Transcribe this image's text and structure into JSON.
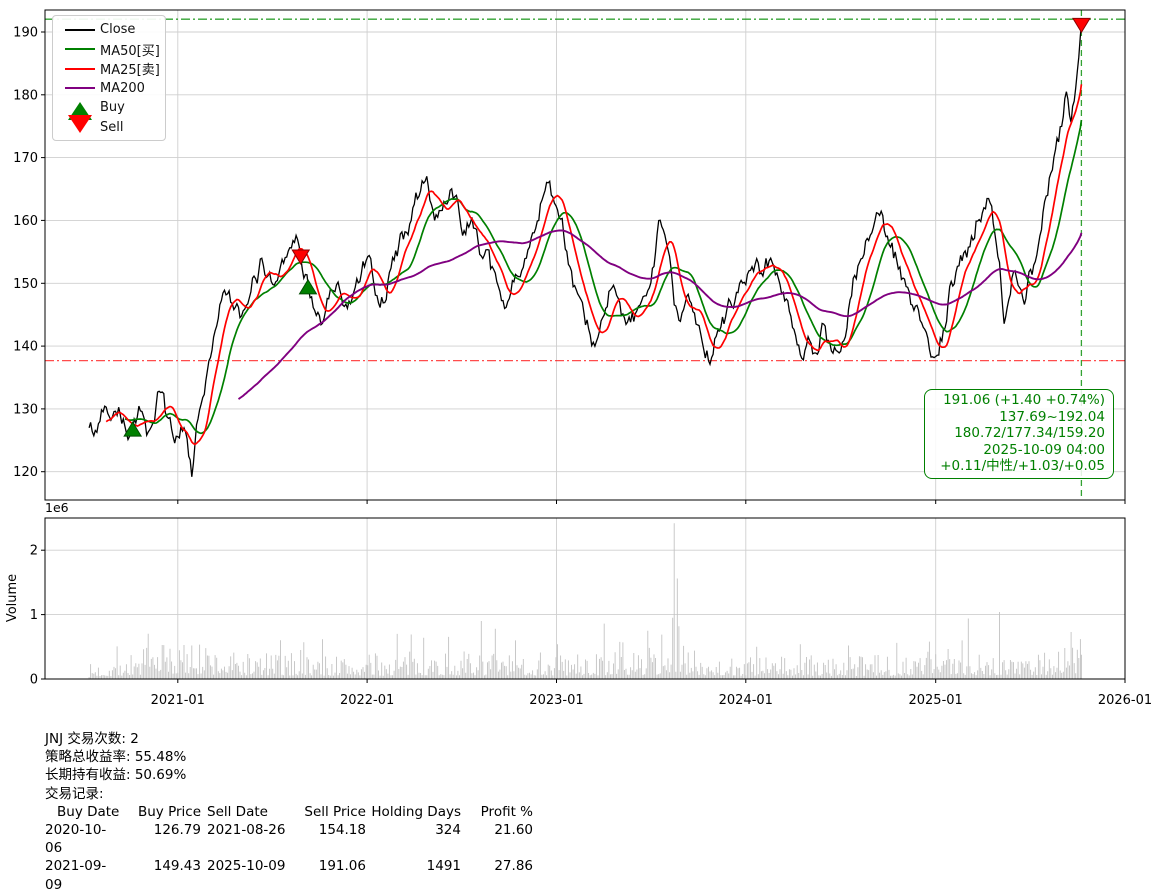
{
  "stats": {
    "line1": "JNJ 交易次数: 2",
    "line2": "策略总收益率: 55.48%",
    "line3": "长期持有收益: 50.69%",
    "line4": "交易记录:",
    "table": {
      "headers": [
        "Buy Date",
        "Buy Price",
        "Sell Date",
        "Sell Price",
        "Holding Days",
        "Profit %"
      ],
      "rows": [
        [
          "2020-10-06",
          "126.79",
          "2021-08-26",
          "154.18",
          "324",
          "21.60"
        ],
        [
          "2021-09-09",
          "149.43",
          "2025-10-09",
          "191.06",
          "1491",
          "27.86"
        ]
      ]
    }
  },
  "legend": {
    "items": [
      {
        "label": "Close",
        "color": "#000000",
        "type": "line"
      },
      {
        "label": "MA50[买]",
        "color": "#008000",
        "type": "line"
      },
      {
        "label": "MA25[卖]",
        "color": "#ff0000",
        "type": "line"
      },
      {
        "label": "MA200",
        "color": "#800080",
        "type": "line"
      },
      {
        "label": "Buy",
        "color": "#008000",
        "type": "triangle-up"
      },
      {
        "label": "Sell",
        "color": "#ff0000",
        "type": "triangle-down"
      }
    ]
  },
  "annotation": {
    "color": "#008000",
    "lines": [
      "191.06 (+1.40 +0.74%)",
      "137.69~192.04",
      "180.72/177.34/159.20",
      "2025-10-09 04:00",
      "+0.11/中性/+1.03/+0.05"
    ]
  },
  "chart_data": {
    "type": "line",
    "title": "",
    "symbol": "JNJ",
    "xlim": [
      "2020-04-20",
      "2026-01-01"
    ],
    "data_range": [
      "2020-07-14",
      "2025-10-09"
    ],
    "x_ticks": [
      "2021-01",
      "2022-01",
      "2023-01",
      "2024-01",
      "2025-01",
      "2026-01"
    ],
    "price_ticks": [
      120,
      130,
      140,
      150,
      160,
      170,
      180,
      190
    ],
    "price_ylim": [
      115.5,
      193.5
    ],
    "volume_ticks": [
      0,
      1,
      2
    ],
    "volume_ylim": [
      0,
      2500000
    ],
    "volume_offset_label": "1e6",
    "volume_ylabel": "Volume",
    "grid_color": "#cfcfcf",
    "close": {
      "name": "Close",
      "color": "#000000",
      "anchors": [
        [
          "2020-07-14",
          127.0
        ],
        [
          "2020-07-28",
          126.0
        ],
        [
          "2020-08-11",
          129.8
        ],
        [
          "2020-08-25",
          128.2
        ],
        [
          "2020-09-08",
          130.5
        ],
        [
          "2020-09-22",
          127.0
        ],
        [
          "2020-10-06",
          126.79
        ],
        [
          "2020-10-20",
          130.0
        ],
        [
          "2020-11-03",
          125.5
        ],
        [
          "2020-11-17",
          128.0
        ],
        [
          "2020-11-30",
          133.0
        ],
        [
          "2020-12-14",
          128.5
        ],
        [
          "2020-12-28",
          125.5
        ],
        [
          "2021-01-12",
          127.5
        ],
        [
          "2021-01-21",
          123.0
        ],
        [
          "2021-01-28",
          119.2
        ],
        [
          "2021-02-08",
          128.0
        ],
        [
          "2021-02-23",
          134.0
        ],
        [
          "2021-03-10",
          141.0
        ],
        [
          "2021-03-24",
          147.0
        ],
        [
          "2021-04-09",
          149.0
        ],
        [
          "2021-04-23",
          146.0
        ],
        [
          "2021-05-14",
          146.5
        ],
        [
          "2021-06-01",
          151.0
        ],
        [
          "2021-06-14",
          153.0
        ],
        [
          "2021-07-05",
          149.5
        ],
        [
          "2021-07-23",
          153.0
        ],
        [
          "2021-08-12",
          157.0
        ],
        [
          "2021-08-26",
          154.18
        ],
        [
          "2021-09-09",
          149.43
        ],
        [
          "2021-09-24",
          145.0
        ],
        [
          "2021-10-08",
          143.5
        ],
        [
          "2021-10-22",
          149.0
        ],
        [
          "2021-11-05",
          150.5
        ],
        [
          "2021-11-19",
          146.0
        ],
        [
          "2021-12-03",
          147.5
        ],
        [
          "2021-12-17",
          150.0
        ],
        [
          "2022-01-03",
          154.5
        ],
        [
          "2022-01-24",
          146.5
        ],
        [
          "2022-02-14",
          152.0
        ],
        [
          "2022-03-08",
          158.0
        ],
        [
          "2022-04-12",
          164.0
        ],
        [
          "2022-04-25",
          167.5
        ],
        [
          "2022-05-11",
          160.0
        ],
        [
          "2022-06-22",
          164.0
        ],
        [
          "2022-07-08",
          158.0
        ],
        [
          "2022-07-22",
          160.5
        ],
        [
          "2022-08-10",
          154.0
        ],
        [
          "2022-08-26",
          152.5
        ],
        [
          "2022-09-15",
          148.5
        ],
        [
          "2022-09-28",
          146.8
        ],
        [
          "2022-10-12",
          150.5
        ],
        [
          "2022-10-26",
          152.0
        ],
        [
          "2022-11-09",
          155.5
        ],
        [
          "2022-11-23",
          159.0
        ],
        [
          "2022-12-07",
          164.0
        ],
        [
          "2022-12-16",
          166.0
        ],
        [
          "2022-12-29",
          162.5
        ],
        [
          "2023-01-10",
          160.0
        ],
        [
          "2023-01-25",
          152.5
        ],
        [
          "2023-02-08",
          149.0
        ],
        [
          "2023-02-22",
          145.5
        ],
        [
          "2023-03-08",
          141.5
        ],
        [
          "2023-03-17",
          139.8
        ],
        [
          "2023-03-31",
          144.5
        ],
        [
          "2023-04-14",
          149.0
        ],
        [
          "2023-04-28",
          148.0
        ],
        [
          "2023-05-12",
          144.5
        ],
        [
          "2023-05-24",
          143.8
        ],
        [
          "2023-06-09",
          146.5
        ],
        [
          "2023-06-23",
          148.0
        ],
        [
          "2023-07-07",
          152.0
        ],
        [
          "2023-07-19",
          160.3
        ],
        [
          "2023-07-26",
          158.5
        ],
        [
          "2023-08-09",
          153.0
        ],
        [
          "2023-08-18",
          146.5
        ],
        [
          "2023-08-30",
          145.0
        ],
        [
          "2023-09-13",
          148.5
        ],
        [
          "2023-09-27",
          143.5
        ],
        [
          "2023-10-11",
          139.5
        ],
        [
          "2023-10-26",
          137.8
        ],
        [
          "2023-11-08",
          142.5
        ],
        [
          "2023-11-22",
          144.5
        ],
        [
          "2023-12-06",
          146.5
        ],
        [
          "2023-12-20",
          150.0
        ],
        [
          "2024-01-05",
          151.5
        ],
        [
          "2024-01-19",
          153.0
        ],
        [
          "2024-02-02",
          151.0
        ],
        [
          "2024-02-20",
          153.5
        ],
        [
          "2024-03-05",
          150.5
        ],
        [
          "2024-03-19",
          147.5
        ],
        [
          "2024-04-02",
          143.0
        ],
        [
          "2024-04-16",
          138.3
        ],
        [
          "2024-04-30",
          141.5
        ],
        [
          "2024-05-14",
          138.5
        ],
        [
          "2024-05-28",
          144.0
        ],
        [
          "2024-06-11",
          140.5
        ],
        [
          "2024-06-25",
          139.0
        ],
        [
          "2024-07-09",
          141.0
        ],
        [
          "2024-07-23",
          148.0
        ],
        [
          "2024-08-06",
          153.0
        ],
        [
          "2024-08-20",
          157.0
        ],
        [
          "2024-09-06",
          160.0
        ],
        [
          "2024-09-17",
          161.8
        ],
        [
          "2024-09-30",
          157.5
        ],
        [
          "2024-10-15",
          155.0
        ],
        [
          "2024-10-29",
          151.0
        ],
        [
          "2024-11-12",
          148.5
        ],
        [
          "2024-11-26",
          146.5
        ],
        [
          "2024-12-10",
          143.0
        ],
        [
          "2024-12-20",
          139.5
        ],
        [
          "2025-01-03",
          138.2
        ],
        [
          "2025-01-17",
          143.0
        ],
        [
          "2025-01-28",
          149.5
        ],
        [
          "2025-02-11",
          152.5
        ],
        [
          "2025-02-25",
          155.0
        ],
        [
          "2025-03-11",
          157.5
        ],
        [
          "2025-03-25",
          160.0
        ],
        [
          "2025-04-08",
          162.0
        ],
        [
          "2025-04-16",
          162.8
        ],
        [
          "2025-04-25",
          158.0
        ],
        [
          "2025-05-06",
          151.0
        ],
        [
          "2025-05-14",
          142.5
        ],
        [
          "2025-05-23",
          148.0
        ],
        [
          "2025-05-30",
          152.0
        ],
        [
          "2025-06-11",
          149.5
        ],
        [
          "2025-06-23",
          147.0
        ],
        [
          "2025-07-02",
          152.0
        ],
        [
          "2025-07-15",
          154.5
        ],
        [
          "2025-07-25",
          159.0
        ],
        [
          "2025-08-05",
          164.0
        ],
        [
          "2025-08-15",
          168.5
        ],
        [
          "2025-08-26",
          172.5
        ],
        [
          "2025-09-05",
          177.0
        ],
        [
          "2025-09-10",
          180.5
        ],
        [
          "2025-09-18",
          175.0
        ],
        [
          "2025-09-25",
          179.0
        ],
        [
          "2025-10-02",
          184.5
        ],
        [
          "2025-10-07",
          189.5
        ],
        [
          "2025-10-09",
          191.06
        ]
      ]
    },
    "mas": [
      {
        "name": "MA50",
        "color": "#008000",
        "window": 50,
        "width": 1.7
      },
      {
        "name": "MA25",
        "color": "#ff0000",
        "window": 25,
        "width": 1.7
      },
      {
        "name": "MA200",
        "color": "#800080",
        "window": 200,
        "width": 1.9
      }
    ],
    "hlines": [
      {
        "value": 192.04,
        "color": "rgba(0,140,0,0.8)",
        "label": "52w-high"
      },
      {
        "value": 137.69,
        "color": "rgba(255,0,0,0.7)",
        "label": "52w-low"
      }
    ],
    "vline": {
      "date": "2025-10-09",
      "color": "rgba(0,140,0,0.8)"
    },
    "trades": [
      {
        "type": "buy",
        "date": "2020-10-06",
        "price": 126.79
      },
      {
        "type": "sell",
        "date": "2021-08-26",
        "price": 154.18
      },
      {
        "type": "buy",
        "date": "2021-09-09",
        "price": 149.43
      },
      {
        "type": "sell",
        "date": "2025-10-09",
        "price": 191.06
      }
    ],
    "marker_colors": {
      "buy_fill": "#008000",
      "buy_edge": "#004d00",
      "sell_fill": "#ff0000",
      "sell_edge": "#8b0000"
    },
    "volume": {
      "color": "#c2c2c2",
      "base_anchors": [
        [
          "2020-07-14",
          120000
        ],
        [
          "2020-10-01",
          220000
        ],
        [
          "2020-12-01",
          300000
        ],
        [
          "2021-02-01",
          290000
        ],
        [
          "2021-05-01",
          230000
        ],
        [
          "2021-09-01",
          210000
        ],
        [
          "2022-01-01",
          200000
        ],
        [
          "2022-05-01",
          230000
        ],
        [
          "2022-09-01",
          220000
        ],
        [
          "2023-01-01",
          210000
        ],
        [
          "2023-05-01",
          220000
        ],
        [
          "2023-08-15",
          280000
        ],
        [
          "2023-12-01",
          200000
        ],
        [
          "2024-04-01",
          190000
        ],
        [
          "2024-08-01",
          185000
        ],
        [
          "2024-12-01",
          220000
        ],
        [
          "2025-02-01",
          260000
        ],
        [
          "2025-05-01",
          230000
        ],
        [
          "2025-08-01",
          250000
        ],
        [
          "2025-10-09",
          330000
        ]
      ],
      "spikes": [
        [
          "2020-12-18",
          470000
        ],
        [
          "2021-01-28",
          520000
        ],
        [
          "2021-02-23",
          480000
        ],
        [
          "2021-08-27",
          450000
        ],
        [
          "2022-03-01",
          700000
        ],
        [
          "2022-04-19",
          640000
        ],
        [
          "2022-08-10",
          900000
        ],
        [
          "2022-09-06",
          780000
        ],
        [
          "2022-10-14",
          600000
        ],
        [
          "2023-01-03",
          540000
        ],
        [
          "2023-04-04",
          860000
        ],
        [
          "2023-06-26",
          750000
        ],
        [
          "2023-08-14",
          950000
        ],
        [
          "2023-08-17",
          2420000
        ],
        [
          "2023-08-21",
          1560000
        ],
        [
          "2023-08-24",
          820000
        ],
        [
          "2024-01-23",
          500000
        ],
        [
          "2024-04-16",
          540000
        ],
        [
          "2024-07-17",
          520000
        ],
        [
          "2024-10-18",
          560000
        ],
        [
          "2024-12-20",
          580000
        ],
        [
          "2025-02-21",
          600000
        ],
        [
          "2025-03-05",
          940000
        ],
        [
          "2025-05-05",
          1040000
        ],
        [
          "2025-09-19",
          730000
        ],
        [
          "2025-10-08",
          620000
        ]
      ]
    }
  }
}
